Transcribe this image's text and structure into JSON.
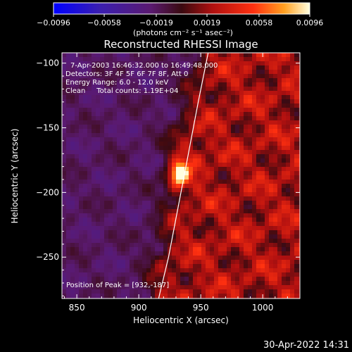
{
  "chart_data": {
    "type": "heatmap",
    "title": "Reconstructed RHESSI Image",
    "xlabel": "Heliocentric X (arcsec)",
    "ylabel": "Heliocentric Y (arcsec)",
    "xlim": [
      838,
      1030
    ],
    "ylim": [
      -282,
      -92
    ],
    "x_ticks": [
      850,
      900,
      950,
      1000
    ],
    "y_ticks": [
      -100,
      -150,
      -200,
      -250
    ],
    "x_tick_labels": [
      "850",
      "900",
      "950",
      "1000"
    ],
    "y_tick_labels": [
      "−100",
      "−150",
      "−200",
      "−250"
    ],
    "colorbar": {
      "min": -0.0096,
      "max": 0.0096,
      "ticks": [
        -0.0096,
        -0.0058,
        -0.0019,
        0.0019,
        0.0058,
        0.0096
      ],
      "tick_labels": [
        "−0.0096",
        "−0.0058",
        "−0.0019",
        "0.0019",
        "0.0058",
        "0.0096"
      ],
      "unit_label": "(photons cm⁻² s⁻¹ asec⁻²)"
    },
    "annotations": {
      "time_range": "7-Apr-2003 16:46:32.000 to 16:49:48.000",
      "detectors": "Detectors: 3F 4F 5F 6F 7F 8F, Att 0",
      "energy_range": "Energy Range: 6.0 - 12.0 keV",
      "method_counts": "Clean     Total counts: 1.19E+04",
      "peak_position": "Position of Peak = [932,-187]"
    },
    "peak": {
      "x": 932,
      "y": -187,
      "value": 0.0096
    },
    "limb_curve": [
      [
        916,
        -282
      ],
      [
        924,
        -250
      ],
      [
        932,
        -210
      ],
      [
        940,
        -170
      ],
      [
        948,
        -130
      ],
      [
        956,
        -92
      ]
    ]
  },
  "footer_timestamp": "30-Apr-2022 14:31"
}
